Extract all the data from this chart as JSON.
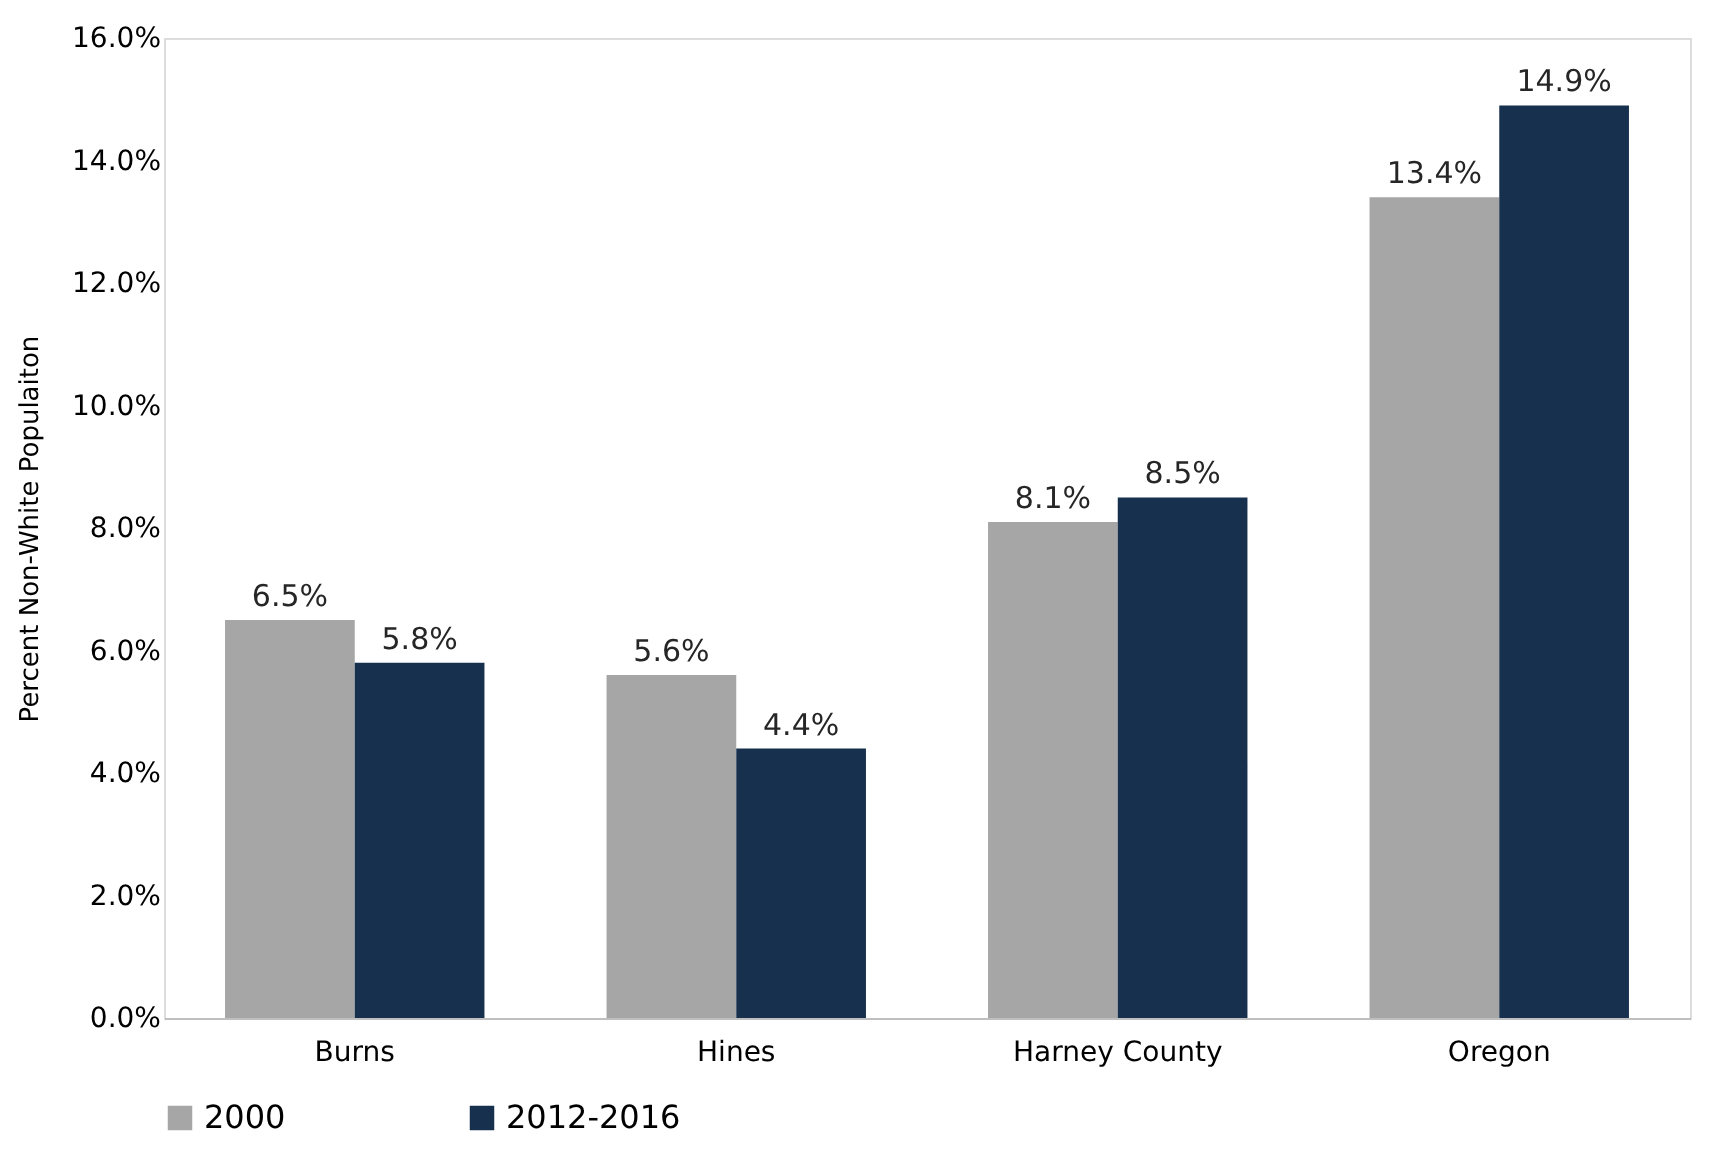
{
  "chart_data": {
    "type": "bar",
    "ylabel": "Percent Non-White Populaiton",
    "categories": [
      "Burns",
      "Hines",
      "Harney County",
      "Oregon"
    ],
    "series": [
      {
        "name": "2000",
        "color": "#a6a6a6",
        "values": [
          6.5,
          5.6,
          8.1,
          13.4
        ],
        "value_labels": [
          "6.5%",
          "5.6%",
          "8.1%",
          "13.4%"
        ]
      },
      {
        "name": "2012-2016",
        "color": "#17304d",
        "values": [
          5.8,
          4.4,
          8.5,
          14.9
        ],
        "value_labels": [
          "5.8%",
          "4.4%",
          "8.5%",
          "14.9%"
        ]
      }
    ],
    "ylim": [
      0,
      16
    ],
    "yticks": [
      {
        "value": 0,
        "label": "0.0%"
      },
      {
        "value": 2,
        "label": "2.0%"
      },
      {
        "value": 4,
        "label": "4.0%"
      },
      {
        "value": 6,
        "label": "6.0%"
      },
      {
        "value": 8,
        "label": "8.0%"
      },
      {
        "value": 10,
        "label": "10.0%"
      },
      {
        "value": 12,
        "label": "12.0%"
      },
      {
        "value": 14,
        "label": "14.0%"
      },
      {
        "value": 16,
        "label": "16.0%"
      }
    ],
    "grid": false,
    "legend": "bottom"
  }
}
